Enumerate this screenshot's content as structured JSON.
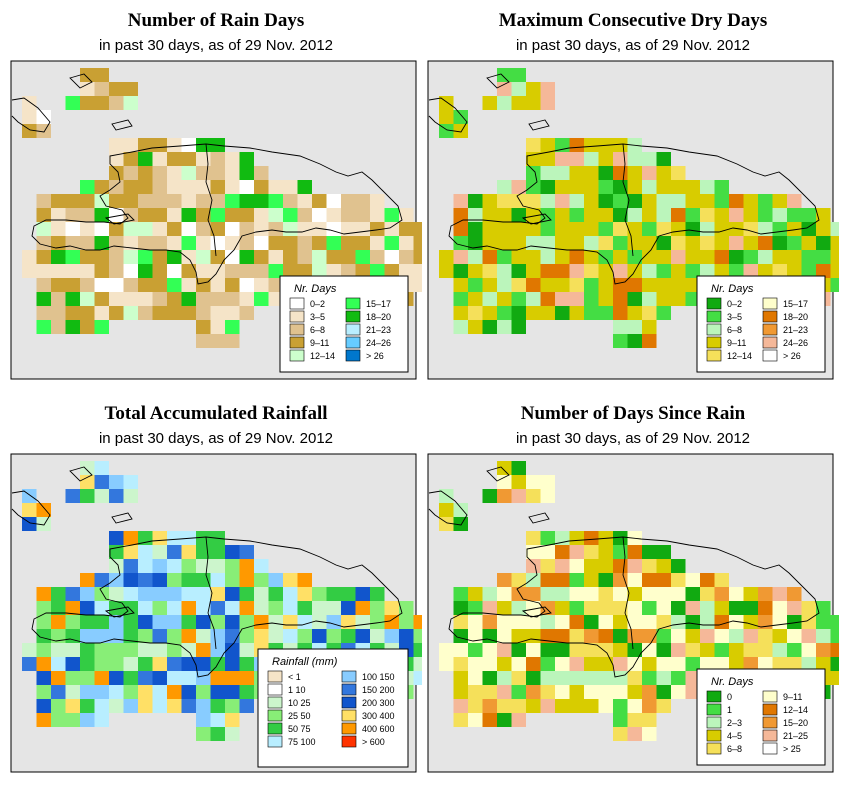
{
  "panels": [
    {
      "id": "rain-days",
      "title": "Number of Rain Days",
      "subtitle": "in past 30 days, as of  29 Nov. 2012",
      "legend_title": "Nr. Days",
      "legend": [
        {
          "label": "0–2",
          "color": "#ffffff"
        },
        {
          "label": "3–5",
          "color": "#f5e4c8"
        },
        {
          "label": "6–8",
          "color": "#e0c28f"
        },
        {
          "label": "9–11",
          "color": "#c9a033"
        },
        {
          "label": "12–14",
          "color": "#ccffcc"
        },
        {
          "label": "15–17",
          "color": "#33ff55"
        },
        {
          "label": "18–20",
          "color": "#11bb11"
        },
        {
          "label": "21–23",
          "color": "#b8eeff"
        },
        {
          "label": "24–26",
          "color": "#66ccff"
        },
        {
          "label": "> 26",
          "color": "#0077cc"
        }
      ]
    },
    {
      "id": "max-dry-days",
      "title": "Maximum Consecutive Dry Days",
      "subtitle": "in past 30 days, as of  29 Nov. 2012",
      "legend_title": "Nr. Days",
      "legend": [
        {
          "label": "0–2",
          "color": "#11aa11"
        },
        {
          "label": "3–5",
          "color": "#44dd44"
        },
        {
          "label": "6–8",
          "color": "#bbf5bb"
        },
        {
          "label": "9–11",
          "color": "#d8cc00"
        },
        {
          "label": "12–14",
          "color": "#f5e05a"
        },
        {
          "label": "15–17",
          "color": "#ffffcc"
        },
        {
          "label": "18–20",
          "color": "#e07700"
        },
        {
          "label": "21–23",
          "color": "#f09933"
        },
        {
          "label": "24–26",
          "color": "#f5b899"
        },
        {
          "label": "> 26",
          "color": "#ffffff"
        }
      ]
    },
    {
      "id": "total-rainfall",
      "title": "Total Accumulated Rainfall",
      "subtitle": "in past 30 days, as of  29 Nov. 2012",
      "legend_title": "Rainfall (mm)",
      "legend": [
        {
          "label": "< 1",
          "color": "#f5e4c8"
        },
        {
          "label": "1     10",
          "color": "#ffffff"
        },
        {
          "label": "10    25",
          "color": "#ccf5cc"
        },
        {
          "label": "25    50",
          "color": "#88ee77"
        },
        {
          "label": "50    75",
          "color": "#33cc44"
        },
        {
          "label": "75   100",
          "color": "#b8eeff"
        },
        {
          "label": "100  150",
          "color": "#88ccff"
        },
        {
          "label": "150  200",
          "color": "#3377dd"
        },
        {
          "label": "200  300",
          "color": "#1155cc"
        },
        {
          "label": "300  400",
          "color": "#ffe066"
        },
        {
          "label": "400  600",
          "color": "#ff9900"
        },
        {
          "label": "> 600",
          "color": "#ff3300"
        }
      ]
    },
    {
      "id": "days-since-rain",
      "title": "Number of Days Since Rain",
      "subtitle": "in past 30 days, as of  29 Nov. 2012",
      "legend_title": "Nr. Days",
      "legend": [
        {
          "label": "0",
          "color": "#11aa11"
        },
        {
          "label": "1",
          "color": "#44dd44"
        },
        {
          "label": "2–3",
          "color": "#bbf5bb"
        },
        {
          "label": "4–5",
          "color": "#d8cc00"
        },
        {
          "label": "6–8",
          "color": "#f5e05a"
        },
        {
          "label": "9–11",
          "color": "#ffffcc"
        },
        {
          "label": "12–14",
          "color": "#e07700"
        },
        {
          "label": "15–20",
          "color": "#f09933"
        },
        {
          "label": "21–25",
          "color": "#f5b899"
        },
        {
          "label": "> 25",
          "color": "#ffffff"
        }
      ]
    }
  ]
}
